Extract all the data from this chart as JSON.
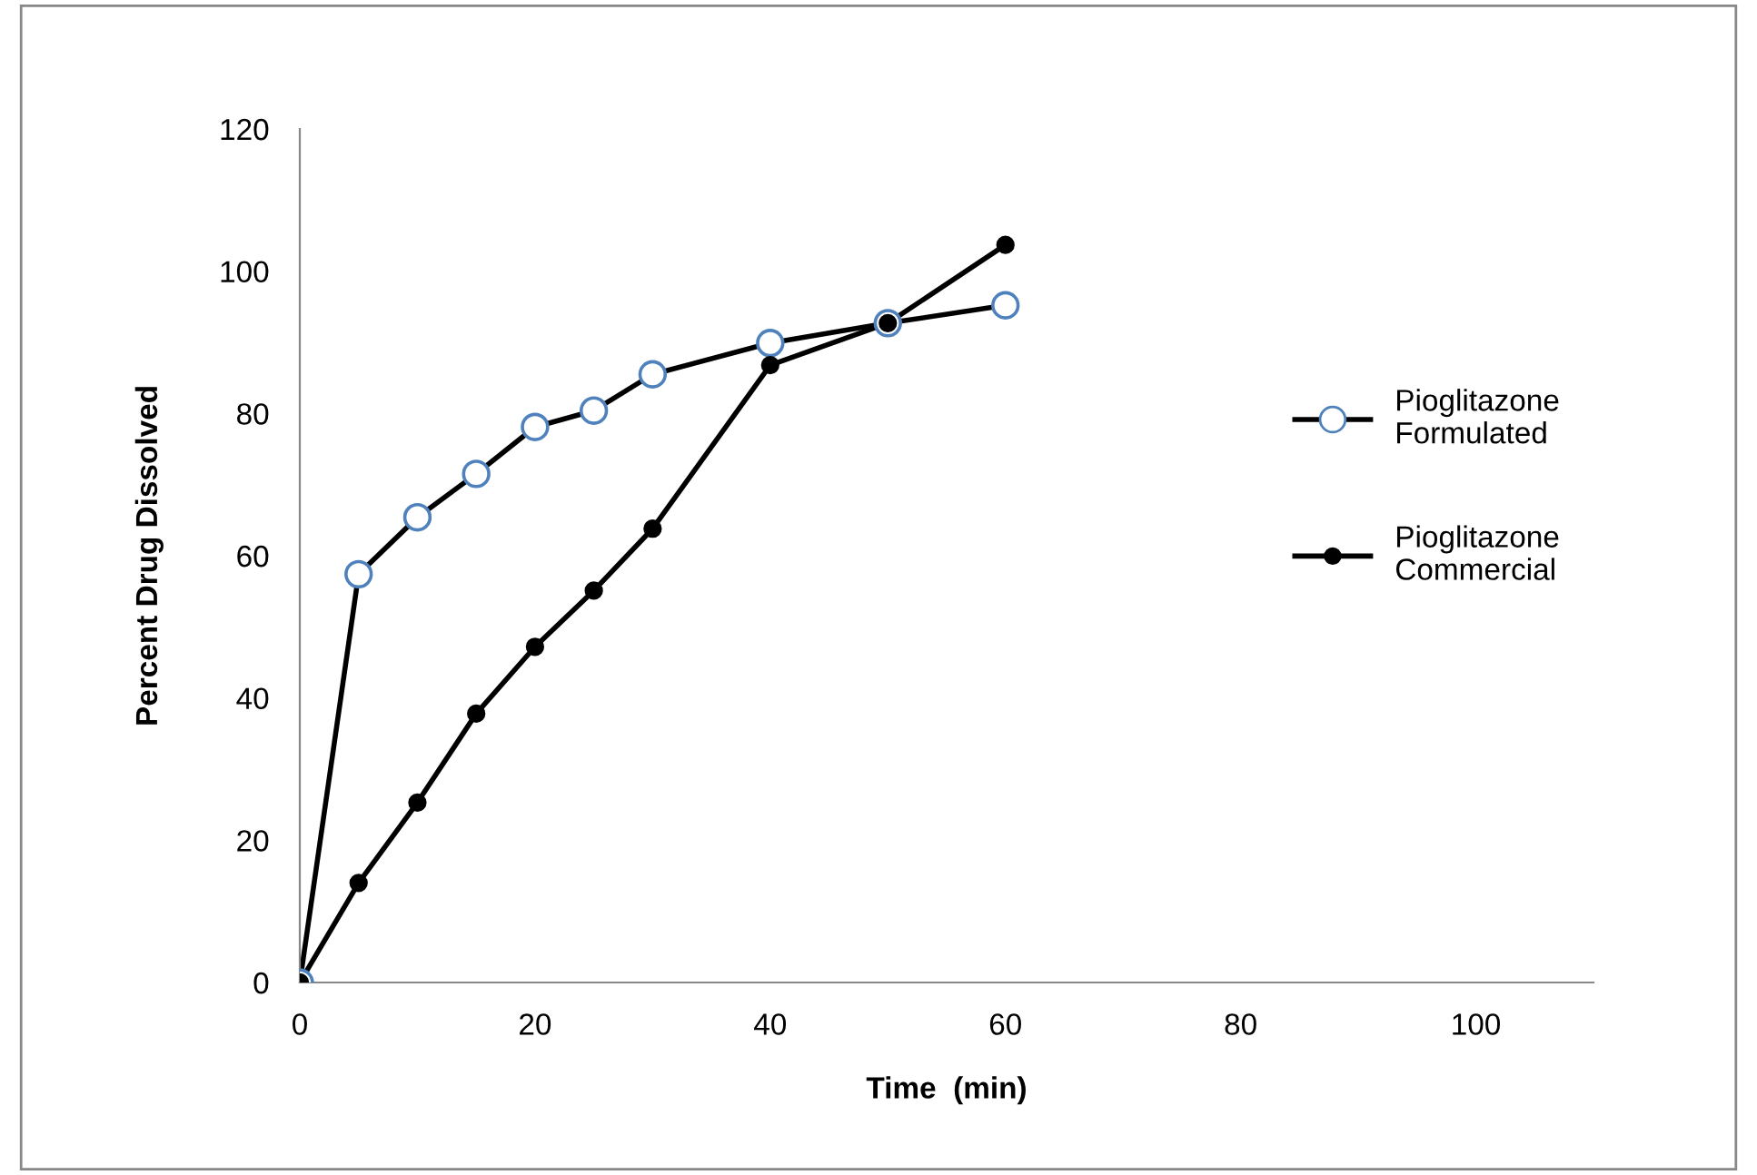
{
  "chart_data": {
    "type": "line",
    "xlabel": "Time  (min)",
    "ylabel": "Percent Drug Dissolved",
    "x": [
      0,
      5,
      10,
      15,
      20,
      25,
      30,
      40,
      50,
      60
    ],
    "series": [
      {
        "name": "Pioglitazone\nFormulated",
        "color": "#4f81bd",
        "marker": "circle",
        "values": [
          0,
          57.4,
          65.4,
          71.5,
          78.1,
          80.4,
          85.5,
          89.9,
          92.7,
          95.2
        ]
      },
      {
        "name": "Pioglitazone\nCommercial",
        "color": "#000000",
        "marker": "circle",
        "values": [
          0,
          14.0,
          25.3,
          37.8,
          47.2,
          55.1,
          63.8,
          86.8,
          92.7,
          103.7
        ]
      }
    ],
    "xlim": [
      0,
      110
    ],
    "xticks": [
      0,
      20,
      40,
      60,
      80,
      100
    ],
    "ylim": [
      0,
      120
    ],
    "yticks": [
      0,
      20,
      40,
      60,
      80,
      100,
      120
    ],
    "grid": false,
    "legend": "right",
    "line_style": "solid"
  }
}
